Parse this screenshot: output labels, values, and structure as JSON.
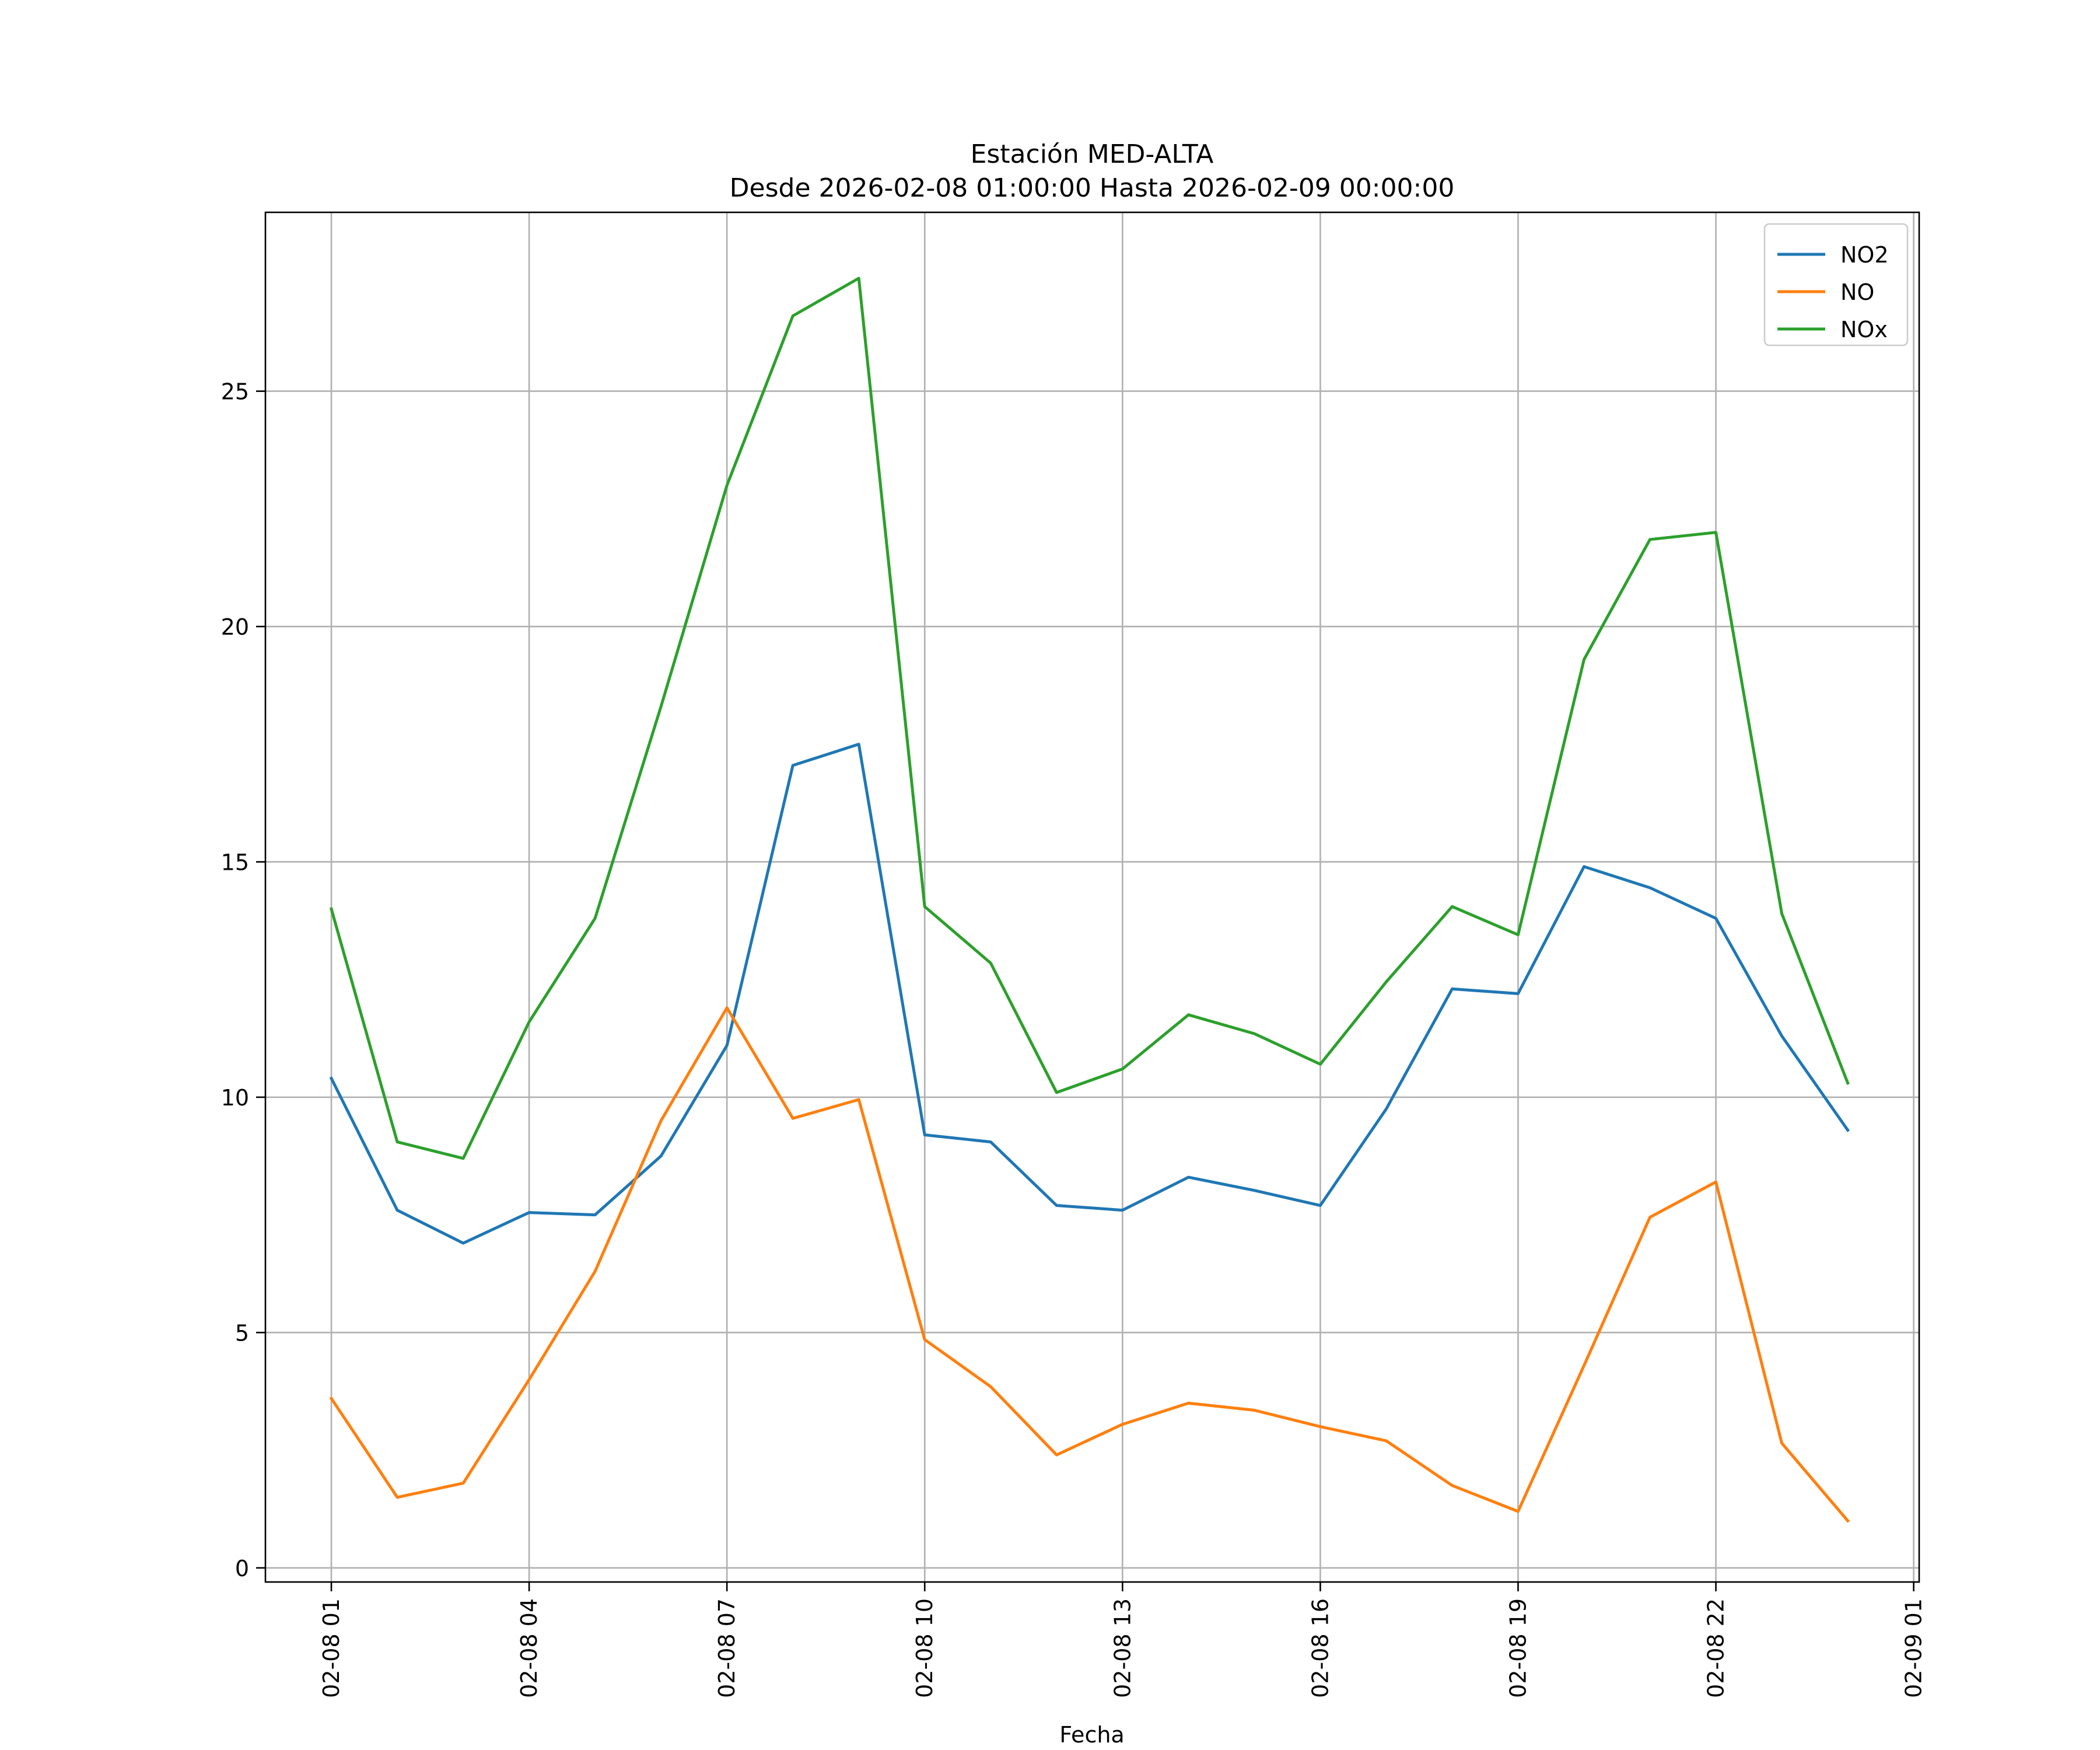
{
  "chart_data": {
    "type": "line",
    "title": "Estación MED-ALTA",
    "subtitle": "Desde 2026-02-08 01:00:00 Hasta 2026-02-09 00:00:00",
    "xlabel": "Fecha",
    "ylabel": "",
    "x": [
      "2026-02-08 01:00",
      "2026-02-08 02:00",
      "2026-02-08 03:00",
      "2026-02-08 04:00",
      "2026-02-08 05:00",
      "2026-02-08 06:00",
      "2026-02-08 07:00",
      "2026-02-08 08:00",
      "2026-02-08 09:00",
      "2026-02-08 10:00",
      "2026-02-08 11:00",
      "2026-02-08 12:00",
      "2026-02-08 13:00",
      "2026-02-08 14:00",
      "2026-02-08 15:00",
      "2026-02-08 16:00",
      "2026-02-08 17:00",
      "2026-02-08 18:00",
      "2026-02-08 19:00",
      "2026-02-08 20:00",
      "2026-02-08 21:00",
      "2026-02-08 22:00",
      "2026-02-08 23:00",
      "2026-02-09 00:00"
    ],
    "xlim": [
      "2026-02-08 00:00",
      "2026-02-09 01:05"
    ],
    "xticks": [
      "02-08 01",
      "02-08 04",
      "02-08 07",
      "02-08 10",
      "02-08 13",
      "02-08 16",
      "02-08 19",
      "02-08 22",
      "02-09 01"
    ],
    "ylim": [
      -0.3,
      28.8
    ],
    "yticks": [
      0,
      5,
      10,
      15,
      20,
      25
    ],
    "grid": true,
    "legend": "top-right",
    "series": [
      {
        "name": "NO2",
        "color": "#1f77b4",
        "values": [
          10.4,
          7.6,
          6.9,
          7.55,
          7.5,
          8.75,
          11.1,
          17.05,
          17.5,
          9.2,
          9.05,
          7.7,
          7.6,
          8.3,
          8.02,
          7.7,
          9.75,
          12.3,
          12.2,
          14.9,
          14.45,
          13.8,
          11.3,
          9.3
        ]
      },
      {
        "name": "NO",
        "color": "#ff7f0e",
        "values": [
          3.6,
          1.5,
          1.8,
          4.0,
          6.3,
          9.5,
          11.9,
          9.55,
          9.95,
          4.85,
          3.85,
          2.4,
          3.05,
          3.5,
          3.35,
          3.0,
          2.7,
          1.75,
          1.2,
          4.3,
          7.45,
          8.2,
          2.65,
          1.0
        ]
      },
      {
        "name": "NOx",
        "color": "#2ca02c",
        "values": [
          14.0,
          9.05,
          8.7,
          11.6,
          13.8,
          18.3,
          23.0,
          26.6,
          27.4,
          14.05,
          12.85,
          10.1,
          10.6,
          11.75,
          11.35,
          10.7,
          12.45,
          14.05,
          13.45,
          19.3,
          21.85,
          22.0,
          13.9,
          10.3
        ]
      }
    ]
  }
}
